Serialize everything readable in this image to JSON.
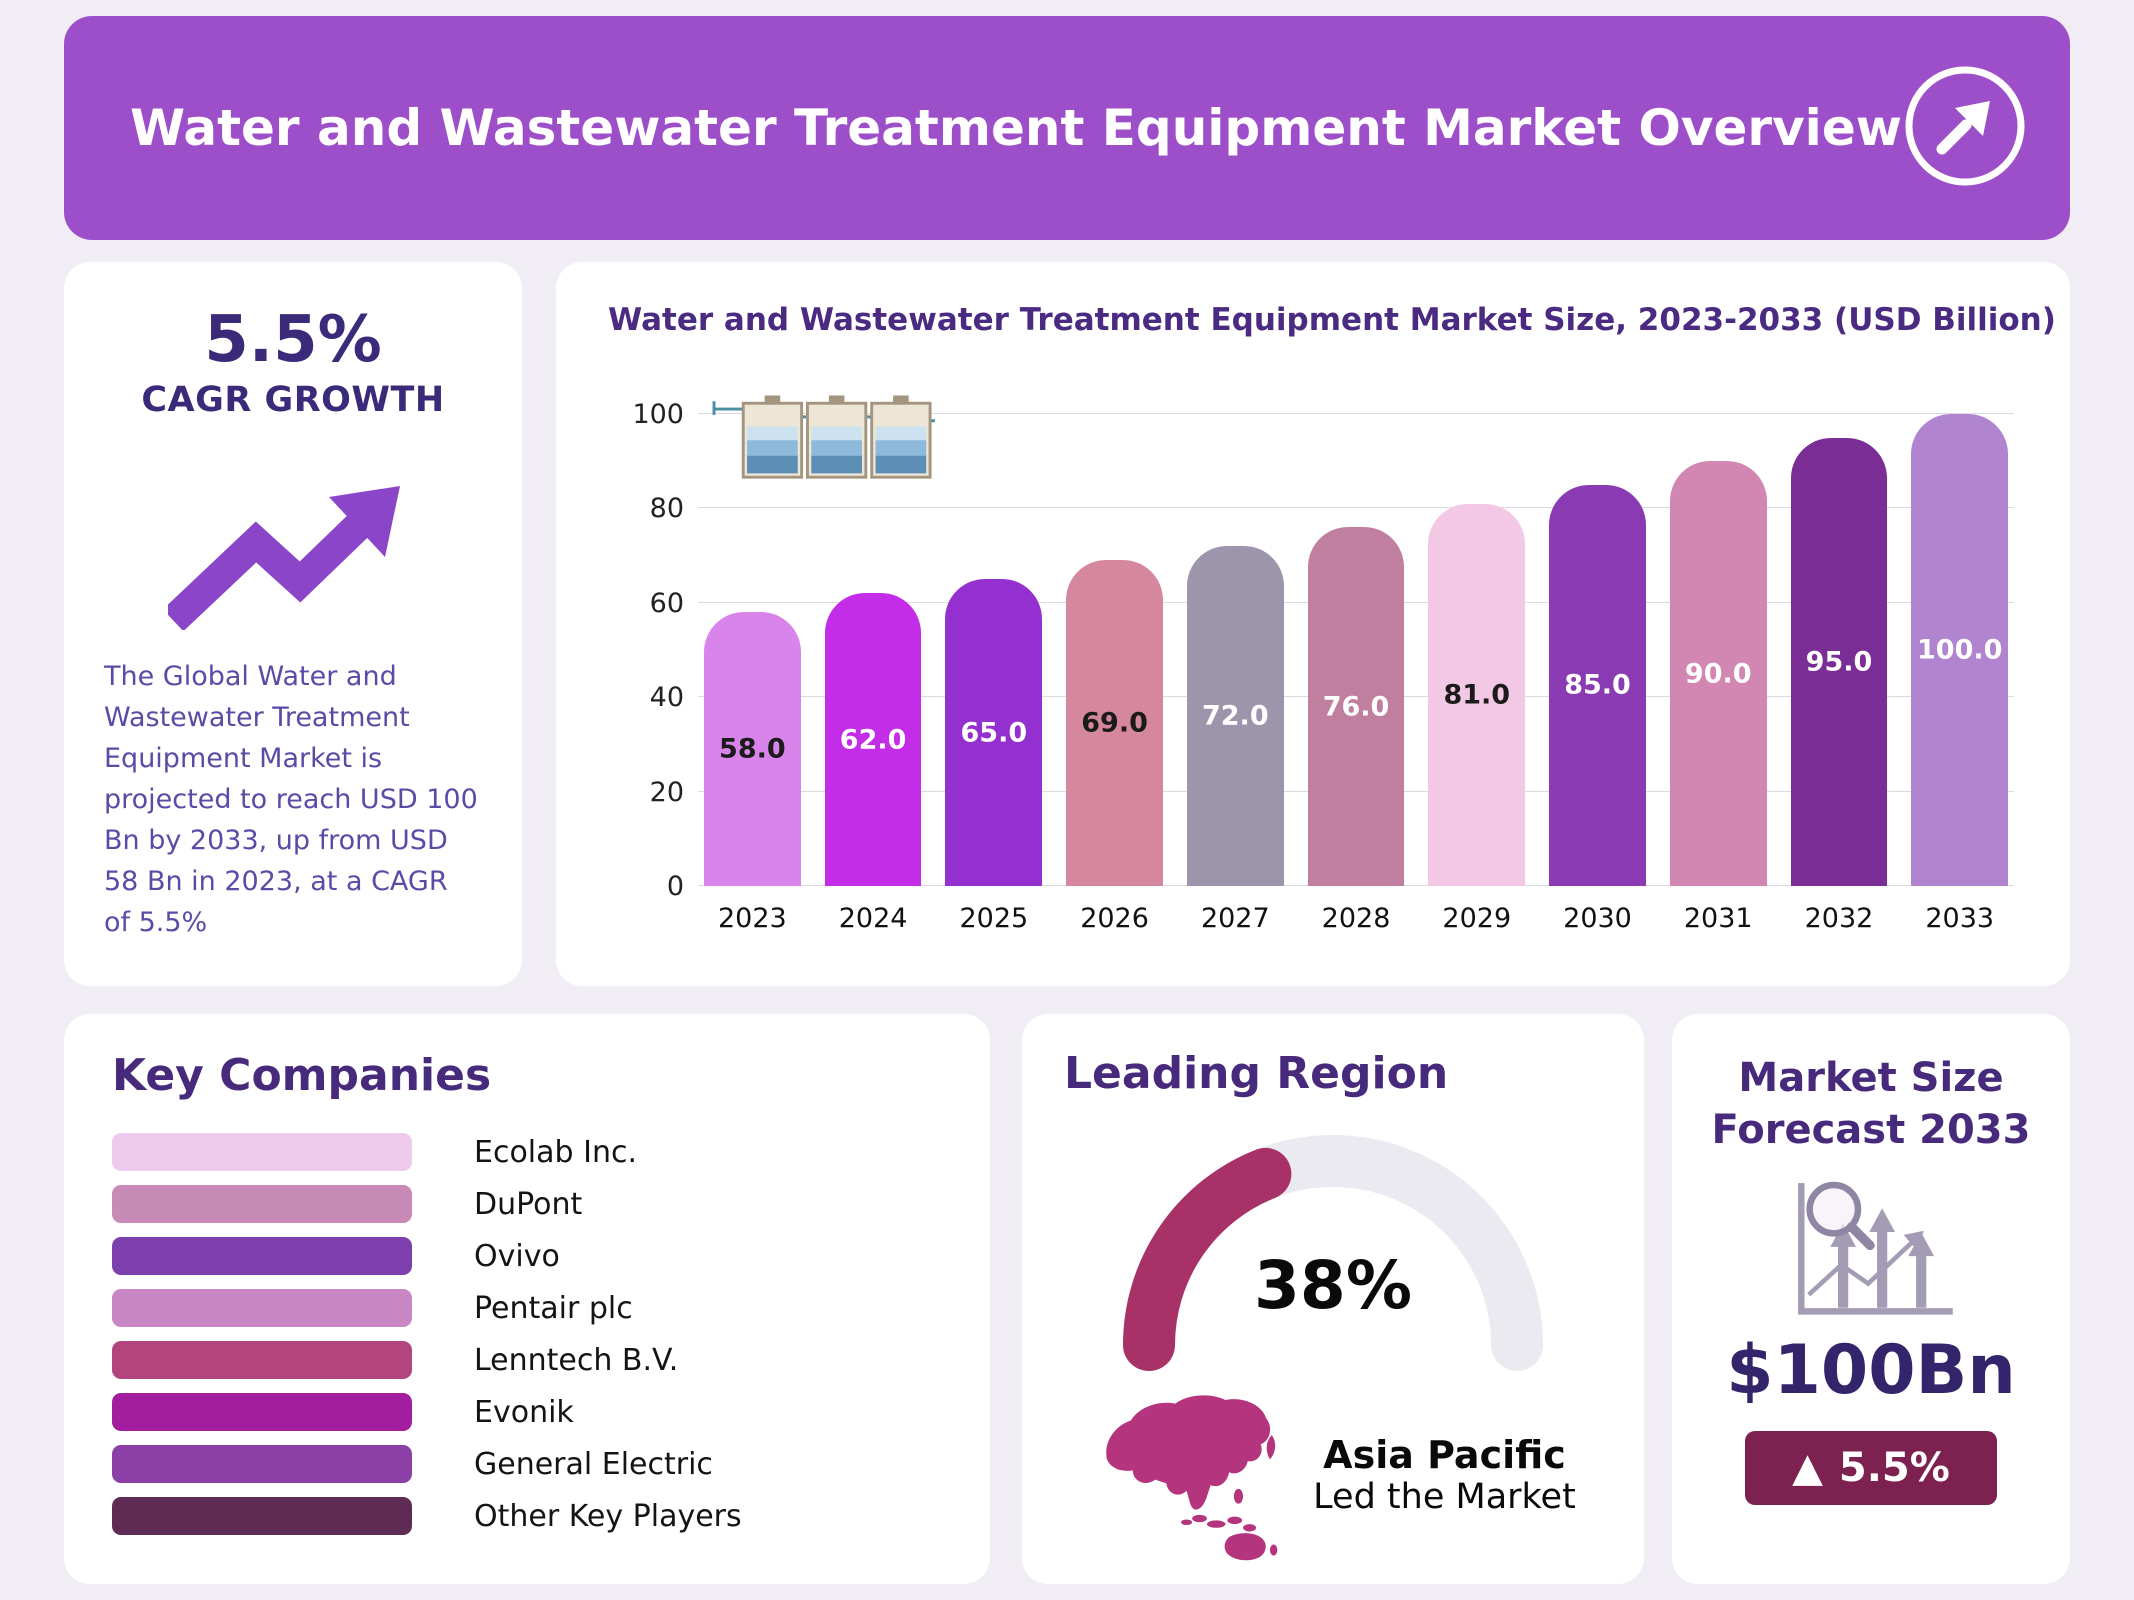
{
  "header": {
    "title": "Water and Wastewater Treatment Equipment Market Overview",
    "background": "#9d4fca",
    "icon": "arrow-up-right-icon"
  },
  "cagr_panel": {
    "value": "5.5%",
    "label": "CAGR GROWTH",
    "icon": "trend-up-arrow-icon",
    "accent_color": "#3b2a7a",
    "description": "The Global Water and Wastewater Treatment Equipment Market is projected to reach USD 100 Bn by 2033, up from USD 58 Bn in 2023, at a CAGR of 5.5%"
  },
  "chart_data": {
    "type": "bar",
    "title": "Water and Wastewater Treatment Equipment Market Size, 2023-2033 (USD Billion)",
    "unit": "USD Billion",
    "categories": [
      "2023",
      "2024",
      "2025",
      "2026",
      "2027",
      "2028",
      "2029",
      "2030",
      "2031",
      "2032",
      "2033"
    ],
    "values": [
      58,
      62,
      65,
      69,
      72,
      76,
      81,
      85,
      90,
      95,
      100
    ],
    "value_labels": [
      "58.0",
      "62.0",
      "65.0",
      "69.0",
      "72.0",
      "76.0",
      "81.0",
      "85.0",
      "90.0",
      "95.0",
      "100.0"
    ],
    "bar_colors": [
      "#d884ea",
      "#c32de8",
      "#9430cf",
      "#d4879d",
      "#9d95ac",
      "#c07f9e",
      "#f3c8e5",
      "#8a3ab2",
      "#d287b2",
      "#7b2d96",
      "#b184d0"
    ],
    "value_label_colors": [
      "#1b1b1b",
      "#ffffff",
      "#ffffff",
      "#1b1b1b",
      "#ffffff",
      "#ffffff",
      "#1b1b1b",
      "#ffffff",
      "#ffffff",
      "#ffffff",
      "#ffffff"
    ],
    "ylim": [
      0,
      100
    ],
    "yticks": [
      0,
      20,
      40,
      60,
      80,
      100
    ],
    "grid": true,
    "legend": "none",
    "illustration": "water-treatment-plant-icon"
  },
  "key_companies": {
    "title": "Key Companies",
    "items": [
      {
        "name": "Ecolab Inc.",
        "color": "#eecaec"
      },
      {
        "name": "DuPont",
        "color": "#c88ab6"
      },
      {
        "name": "Ovivo",
        "color": "#7e3fae"
      },
      {
        "name": "Pentair plc",
        "color": "#c886c3"
      },
      {
        "name": "Lenntech B.V.",
        "color": "#b2447e"
      },
      {
        "name": "Evonik",
        "color": "#a21e9e"
      },
      {
        "name": "General Electric",
        "color": "#8c3fa5"
      },
      {
        "name": "Other Key Players",
        "color": "#5e2b54"
      }
    ]
  },
  "leading_region": {
    "title": "Leading Region",
    "share_label": "38%",
    "share_value": 38,
    "region": "Asia Pacific",
    "region_caption": "Led the Market",
    "gauge_color": "#a83268",
    "gauge_track_color": "#eceaf1",
    "map_icon": "asia-pacific-map-icon",
    "map_color": "#b5347e"
  },
  "market_forecast": {
    "title": "Market Size Forecast 2033",
    "icon": "chart-magnifier-icon",
    "value": "$100Bn",
    "value_color": "#34246b",
    "growth_badge": {
      "icon": "▲",
      "label": "5.5%",
      "background": "#7d2150"
    }
  }
}
